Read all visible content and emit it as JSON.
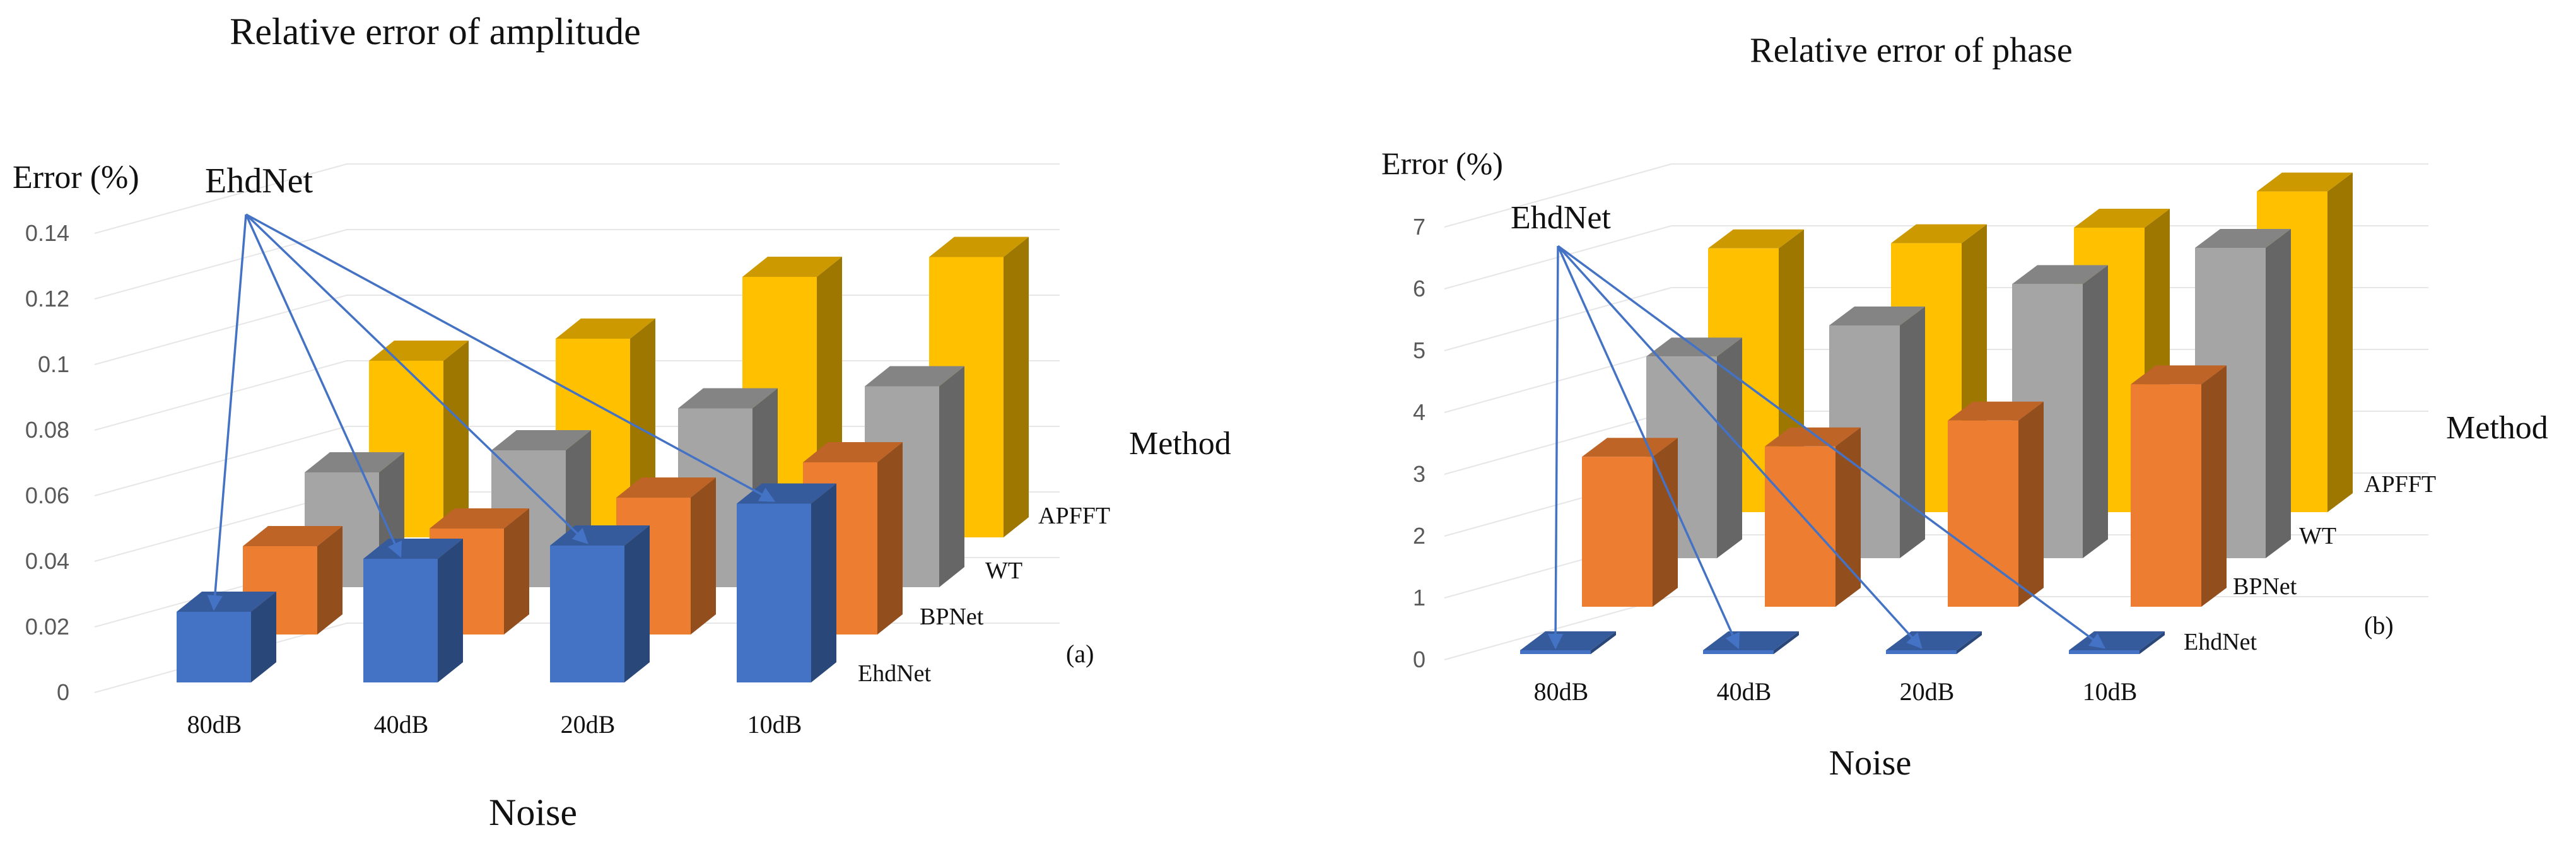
{
  "chart_data": [
    {
      "type": "bar",
      "title": "Relative error of amplitude",
      "ylabel": "Error (%)",
      "xlabel": "Noise",
      "zlabel": "Method",
      "panel": "(a)",
      "categories": [
        "80dB",
        "40dB",
        "20dB",
        "10dB"
      ],
      "yticks": [
        "0",
        "0.02",
        "0.04",
        "0.06",
        "0.08",
        "0.1",
        "0.12",
        "0.14"
      ],
      "ylim": [
        0,
        0.14
      ],
      "series": [
        {
          "name": "EhdNet",
          "values": [
            0.032,
            0.056,
            0.062,
            0.081
          ]
        },
        {
          "name": "BPNet",
          "values": [
            0.04,
            0.048,
            0.062,
            0.078
          ]
        },
        {
          "name": "WT",
          "values": [
            0.052,
            0.062,
            0.081,
            0.091
          ]
        },
        {
          "name": "APFFT",
          "values": [
            0.08,
            0.09,
            0.118,
            0.127
          ]
        }
      ],
      "annotation": "EhdNet"
    },
    {
      "type": "bar",
      "title": "Relative error of phase",
      "ylabel": "Error (%)",
      "xlabel": "Noise",
      "zlabel": "Method",
      "panel": "(b)",
      "categories": [
        "80dB",
        "40dB",
        "20dB",
        "10dB"
      ],
      "yticks": [
        "0",
        "1",
        "2",
        "3",
        "4",
        "5",
        "6",
        "7"
      ],
      "ylim": [
        0,
        7
      ],
      "series": [
        {
          "name": "EhdNet",
          "values": [
            0.02,
            0.02,
            0.02,
            0.02
          ]
        },
        {
          "name": "BPNet",
          "values": [
            2.9,
            3.1,
            3.6,
            4.3
          ]
        },
        {
          "name": "WT",
          "values": [
            3.9,
            4.5,
            5.3,
            6.0
          ]
        },
        {
          "name": "APFFT",
          "values": [
            5.1,
            5.2,
            5.5,
            6.2
          ]
        }
      ],
      "annotation": "EhdNet"
    }
  ],
  "colors": {
    "EhdNet": "#4472C4",
    "BPNet": "#ED7D31",
    "WT": "#A5A5A5",
    "APFFT": "#FFC000",
    "arrow": "#4472C4",
    "gridline": "#e6e6e6"
  }
}
